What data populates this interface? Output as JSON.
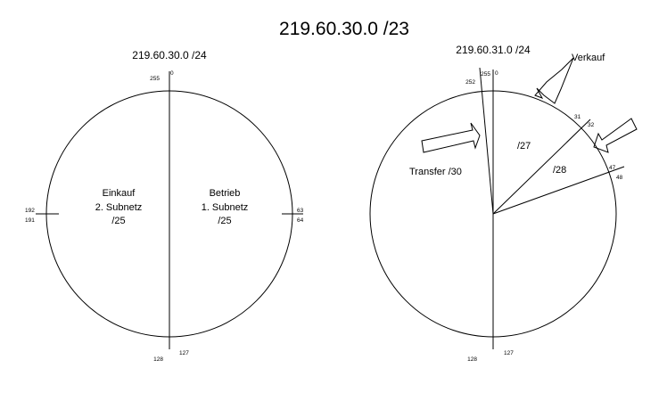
{
  "title": "219.60.30.0 /23",
  "left_circle": {
    "title": "219.60.30.0 /24",
    "ticks": {
      "n255": "255",
      "n0": "0",
      "n192": "192",
      "n191": "191",
      "n63": "63",
      "n64": "64",
      "n128": "128",
      "n127": "127"
    },
    "einkauf": {
      "name": "Einkauf",
      "subnet": "2. Subnetz",
      "prefix": "/25"
    },
    "betrieb": {
      "name": "Betrieb",
      "subnet": "1. Subnetz",
      "prefix": "/25"
    }
  },
  "right_circle": {
    "title": "219.60.31.0 /24",
    "ticks": {
      "n255": "255",
      "n0": "0",
      "n252": "252",
      "n31": "31",
      "n32": "32",
      "n47": "47",
      "n48": "48",
      "n128": "128",
      "n127": "127"
    },
    "labels": {
      "verkauf": "Verkauf",
      "transfer": "Transfer /30",
      "p27": "/27",
      "p28": "/28"
    }
  },
  "colors": {
    "arrow_blue": "#e8f4fb",
    "arrow_yellow": "#fbd36a",
    "line": "#000000"
  }
}
